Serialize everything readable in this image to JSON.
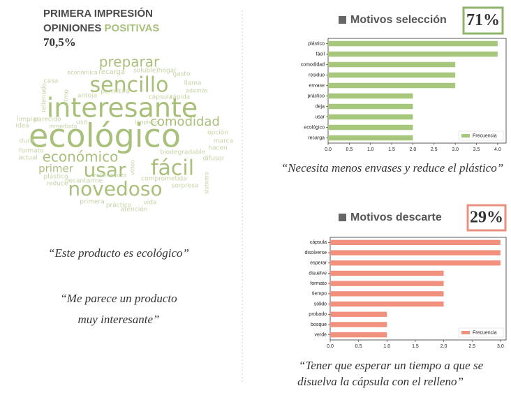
{
  "header": {
    "title": "PRIMERA IMPRESIÓN",
    "subtitle_a": "OPINIONES",
    "subtitle_b": "POSITIVAS",
    "score": "70,5%"
  },
  "word_cloud": [
    "preparar",
    "económica",
    "recarga",
    "soluble)hogar",
    "gasto",
    "sencillo",
    "llama",
    "además",
    "interesante",
    "comodidad",
    "ecológico",
    "económico",
    "usar",
    "fácil",
    "primer",
    "novedoso",
    "cápsula",
    "rápida",
    "permitirá",
    "antoja",
    "limpieza",
    "opción",
    "biodegradable",
    "hacen",
    "marca",
    "difusor",
    "sorpresa",
    "comprometida",
    "plástico",
    "reduce",
    "decantarme",
    "práctico",
    "vida",
    "atención",
    "primera",
    "rellenadoza",
    "idea",
    "dura",
    "formato",
    "actual",
    "casa",
    "ritmo",
    "parecido",
    "uso",
    "limpiar",
    "rellenado",
    "vídeo",
    "sistema",
    "inmediato"
  ],
  "quotes": {
    "left_1": "“Este producto es ecológico”",
    "left_2a": "“Me parece un producto",
    "left_2b": "muy interesante”",
    "right_1": "“Necesita menos envases y reduce el plástico”",
    "right_2a": "“Tener que esperar un tiempo a que se",
    "right_2b": "disuelva la cápsula con el relleno”"
  },
  "chart_data": [
    {
      "type": "barh",
      "title": "Motivos selección",
      "badge": "71%",
      "categories": [
        "plástico",
        "fácil",
        "comodidad",
        "residuo",
        "envase",
        "práctico",
        "deja",
        "usar",
        "ecológico",
        "recarga"
      ],
      "series": [
        {
          "name": "Frecuencia",
          "color": "#a6c77c",
          "values": [
            4,
            4,
            3,
            3,
            3,
            2,
            2,
            2,
            2,
            2
          ]
        }
      ],
      "xlim": [
        0,
        4.2
      ],
      "xticks": [
        {
          "value": 0,
          "label": "0.0"
        },
        {
          "value": 0.5,
          "label": "0.5"
        },
        {
          "value": 1,
          "label": "1.0"
        },
        {
          "value": 1.5,
          "label": "1.5"
        },
        {
          "value": 2,
          "label": "2.0"
        },
        {
          "value": 2.5,
          "label": "2.5"
        },
        {
          "value": 3,
          "label": "3.0"
        },
        {
          "value": 3.5,
          "label": "3.5"
        },
        {
          "value": 4,
          "label": "4.0"
        }
      ],
      "legend": "lower right",
      "badge_color": "#8fb36a"
    },
    {
      "type": "barh",
      "title": "Motivos descarte",
      "badge": "29%",
      "categories": [
        "cápsula",
        "disolverse",
        "esperar",
        "disuelve",
        "formato",
        "tiempo",
        "sólido",
        "probado",
        "bosque",
        "verde"
      ],
      "series": [
        {
          "name": "Frecuencia",
          "color": "#f0907d",
          "values": [
            3,
            3,
            3,
            2,
            2,
            2,
            2,
            1,
            1,
            1
          ]
        }
      ],
      "xlim": [
        0,
        3.1
      ],
      "xticks": [
        {
          "value": 0,
          "label": "0.0"
        },
        {
          "value": 0.5,
          "label": "0.5"
        },
        {
          "value": 1,
          "label": "1.0"
        },
        {
          "value": 1.5,
          "label": "1.5"
        },
        {
          "value": 2,
          "label": "2.0"
        },
        {
          "value": 2.5,
          "label": "2.5"
        },
        {
          "value": 3,
          "label": "3.0"
        }
      ],
      "legend": "lower right",
      "badge_color": "#e8907e"
    }
  ]
}
